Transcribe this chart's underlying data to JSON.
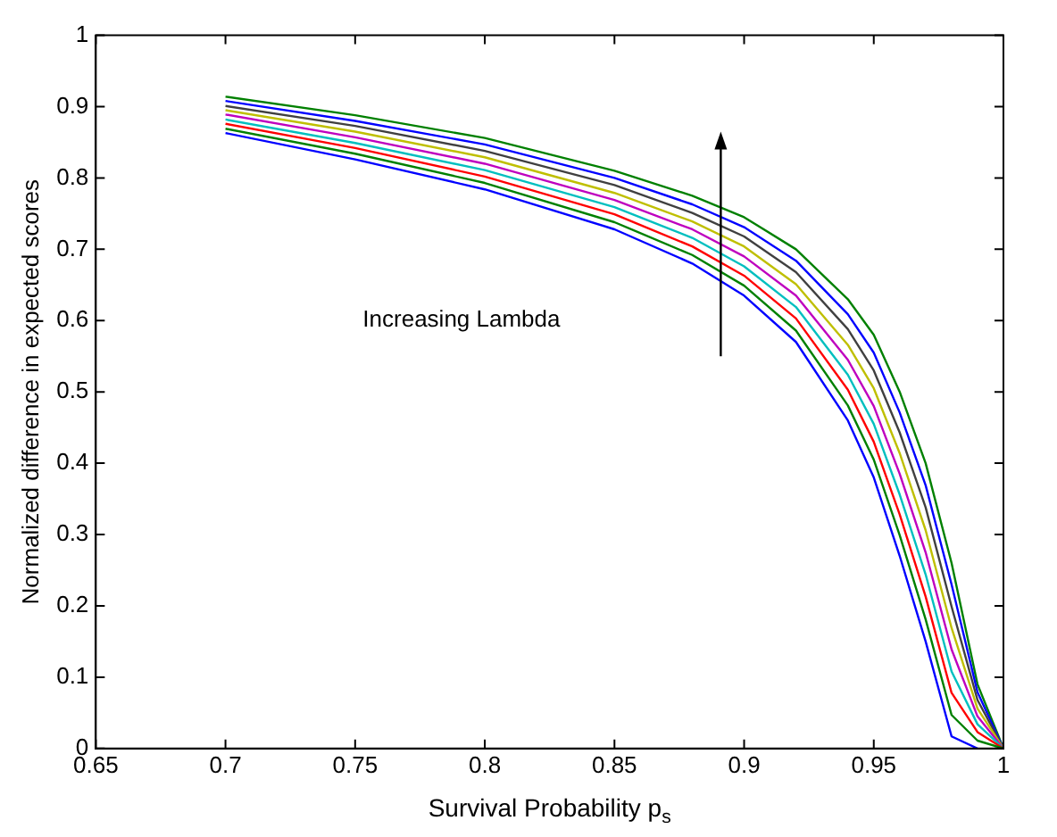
{
  "chart_data": {
    "type": "line",
    "xlabel": "Survival Probability p$_{s}$",
    "ylabel": "Normalized difference in expected scores",
    "annotations": [
      "Increasing Lambda"
    ],
    "x": [
      0.7,
      0.75,
      0.8,
      0.85,
      0.88,
      0.9,
      0.92,
      0.94,
      0.95,
      0.96,
      0.97,
      0.98,
      0.99,
      1.0
    ],
    "series": [
      {
        "color": "#0000ff",
        "values": [
          0.863,
          0.826,
          0.784,
          0.728,
          0.68,
          0.635,
          0.57,
          0.46,
          0.38,
          0.27,
          0.15,
          0.017,
          0,
          null
        ]
      },
      {
        "color": "#008000",
        "values": [
          0.869,
          0.834,
          0.793,
          0.738,
          0.692,
          0.649,
          0.586,
          0.481,
          0.405,
          0.299,
          0.181,
          0.047,
          0.011,
          0
        ]
      },
      {
        "color": "#ff0000",
        "values": [
          0.876,
          0.842,
          0.802,
          0.749,
          0.704,
          0.663,
          0.603,
          0.503,
          0.43,
          0.328,
          0.213,
          0.078,
          0.023,
          0
        ]
      },
      {
        "color": "#00bfbf",
        "values": [
          0.882,
          0.849,
          0.811,
          0.759,
          0.716,
          0.676,
          0.619,
          0.524,
          0.455,
          0.356,
          0.244,
          0.108,
          0.034,
          0
        ]
      },
      {
        "color": "#bf00bf",
        "values": [
          0.889,
          0.857,
          0.82,
          0.769,
          0.728,
          0.69,
          0.635,
          0.545,
          0.48,
          0.385,
          0.275,
          0.139,
          0.045,
          0
        ]
      },
      {
        "color": "#bfbf00",
        "values": [
          0.895,
          0.865,
          0.829,
          0.779,
          0.739,
          0.704,
          0.651,
          0.566,
          0.505,
          0.414,
          0.306,
          0.169,
          0.056,
          0
        ]
      },
      {
        "color": "#404040",
        "values": [
          0.901,
          0.873,
          0.838,
          0.79,
          0.751,
          0.718,
          0.668,
          0.588,
          0.53,
          0.443,
          0.338,
          0.199,
          0.068,
          0
        ]
      },
      {
        "color": "#0000ff",
        "values": [
          0.908,
          0.88,
          0.847,
          0.8,
          0.763,
          0.731,
          0.684,
          0.609,
          0.555,
          0.471,
          0.369,
          0.23,
          0.079,
          0
        ]
      },
      {
        "color": "#008000",
        "values": [
          0.914,
          0.888,
          0.856,
          0.81,
          0.775,
          0.745,
          0.7,
          0.63,
          0.58,
          0.5,
          0.4,
          0.26,
          0.09,
          0
        ]
      }
    ],
    "xlim": [
      0.65,
      1
    ],
    "xticks": [
      0.65,
      0.7,
      0.75,
      0.8,
      0.85,
      0.9,
      0.95,
      1
    ],
    "ylim": [
      0,
      1
    ],
    "yticks": [
      0,
      0.1,
      0.2,
      0.3,
      0.4,
      0.5,
      0.6,
      0.7,
      0.8,
      0.9,
      1
    ],
    "grid": false,
    "legend": false,
    "marker": "none",
    "line_style": "solid"
  }
}
